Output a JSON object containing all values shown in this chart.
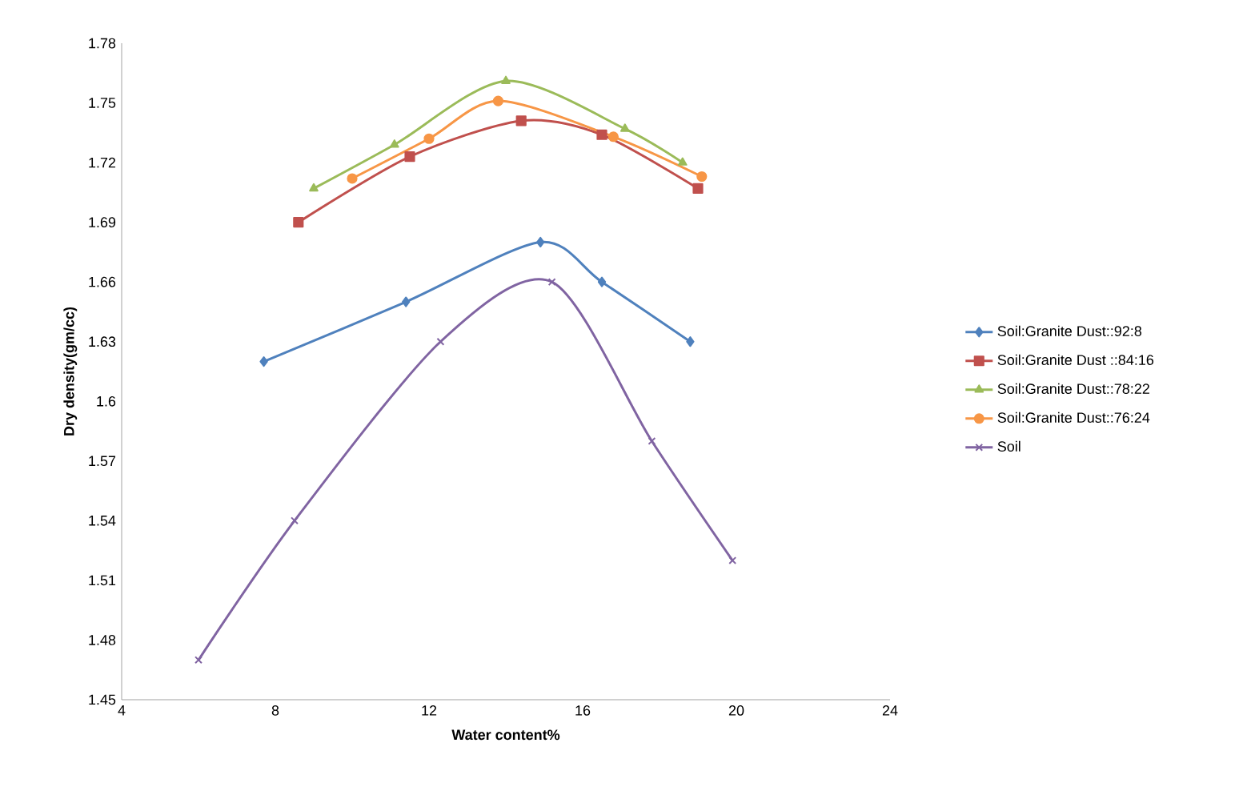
{
  "chart_data": {
    "type": "line",
    "xlabel": "Water content%",
    "ylabel": "Dry density(gm/cc)",
    "xlim": [
      4,
      24
    ],
    "xticks": [
      4,
      8,
      12,
      16,
      20,
      24
    ],
    "ylim": [
      1.45,
      1.78
    ],
    "yticks": [
      1.45,
      1.48,
      1.51,
      1.54,
      1.57,
      1.6,
      1.63,
      1.66,
      1.69,
      1.72,
      1.75,
      1.78
    ],
    "grid": false,
    "legend": "right",
    "series": [
      {
        "name": "Soil:Granite Dust::92:8",
        "color": "#4f81bd",
        "marker": "diamond",
        "x": [
          7.7,
          11.4,
          14.9,
          16.5,
          18.8
        ],
        "values": [
          1.62,
          1.65,
          1.68,
          1.66,
          1.63
        ]
      },
      {
        "name": "Soil:Granite Dust ::84:16",
        "color": "#c0504d",
        "marker": "square",
        "x": [
          8.6,
          11.5,
          14.4,
          16.5,
          19.0
        ],
        "values": [
          1.69,
          1.723,
          1.741,
          1.734,
          1.707
        ]
      },
      {
        "name": "Soil:Granite Dust::78:22",
        "color": "#9bbb59",
        "marker": "triangle",
        "x": [
          9.0,
          11.1,
          14.0,
          17.1,
          18.6
        ],
        "values": [
          1.707,
          1.729,
          1.761,
          1.737,
          1.72
        ]
      },
      {
        "name": "Soil:Granite Dust::76:24",
        "color": "#f79646",
        "marker": "circle",
        "x": [
          10.0,
          12.0,
          13.8,
          16.8,
          19.1
        ],
        "values": [
          1.712,
          1.732,
          1.751,
          1.733,
          1.713
        ]
      },
      {
        "name": "Soil",
        "color": "#8064a2",
        "marker": "cross",
        "x": [
          6.0,
          8.5,
          12.3,
          15.2,
          17.8,
          19.9
        ],
        "values": [
          1.47,
          1.54,
          1.63,
          1.66,
          1.58,
          1.52
        ]
      }
    ]
  }
}
